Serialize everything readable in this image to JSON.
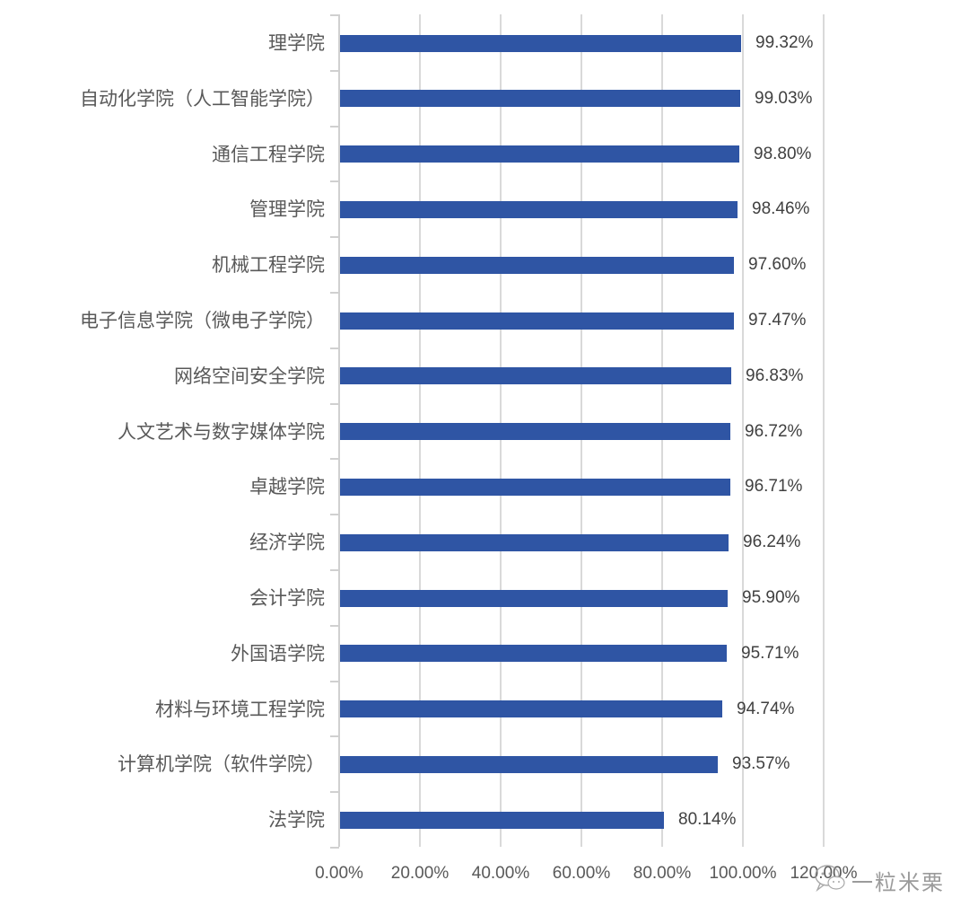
{
  "chart_data": {
    "type": "bar",
    "orientation": "horizontal",
    "title": "",
    "xlabel": "",
    "ylabel": "",
    "xlim": [
      0,
      120
    ],
    "grid": true,
    "legend": null,
    "bar_color": "#2f55a4",
    "categories": [
      "理学院",
      "自动化学院（人工智能学院）",
      "通信工程学院",
      "管理学院",
      "机械工程学院",
      "电子信息学院（微电子学院）",
      "网络空间安全学院",
      "人文艺术与数字媒体学院",
      "卓越学院",
      "经济学院",
      "会计学院",
      "外国语学院",
      "材料与环境工程学院",
      "计算机学院（软件学院）",
      "法学院"
    ],
    "values": [
      99.32,
      99.03,
      98.8,
      98.46,
      97.6,
      97.47,
      96.83,
      96.72,
      96.71,
      96.24,
      95.9,
      95.71,
      94.74,
      93.57,
      80.14
    ],
    "value_labels": [
      "99.32%",
      "99.03%",
      "98.80%",
      "98.46%",
      "97.60%",
      "97.47%",
      "96.83%",
      "96.72%",
      "96.71%",
      "96.24%",
      "95.90%",
      "95.71%",
      "94.74%",
      "93.57%",
      "80.14%"
    ],
    "x_ticks": [
      0,
      20,
      40,
      60,
      80,
      100,
      120
    ],
    "x_tick_labels": [
      "0.00%",
      "20.00%",
      "40.00%",
      "60.00%",
      "80.00%",
      "100.00%",
      "120.00%"
    ]
  },
  "watermark": {
    "icon": "wechat-bubble-icon",
    "text": "一粒米栗"
  }
}
